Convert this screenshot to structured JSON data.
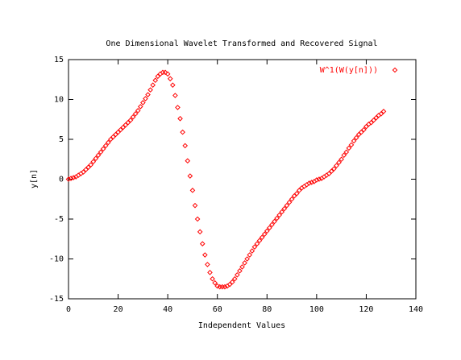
{
  "chart_data": {
    "type": "scatter",
    "title": "One Dimensional Wavelet Transformed and Recovered Signal",
    "xlabel": "Independent Values",
    "ylabel": "y[n]",
    "xlim": [
      0,
      140
    ],
    "xticks": [
      0,
      20,
      40,
      60,
      80,
      100,
      120,
      140
    ],
    "ylim": [
      -15,
      15
    ],
    "yticks": [
      -15,
      -10,
      -5,
      0,
      5,
      10,
      15
    ],
    "legend": "upper right",
    "series": [
      {
        "name": "W^1(W(y[n]))",
        "color": "#ff0000",
        "x": [
          0,
          1,
          2,
          3,
          4,
          5,
          6,
          7,
          8,
          9,
          10,
          11,
          12,
          13,
          14,
          15,
          16,
          17,
          18,
          19,
          20,
          21,
          22,
          23,
          24,
          25,
          26,
          27,
          28,
          29,
          30,
          31,
          32,
          33,
          34,
          35,
          36,
          37,
          38,
          39,
          40,
          41,
          42,
          43,
          44,
          45,
          46,
          47,
          48,
          49,
          50,
          51,
          52,
          53,
          54,
          55,
          56,
          57,
          58,
          59,
          60,
          61,
          62,
          63,
          64,
          65,
          66,
          67,
          68,
          69,
          70,
          71,
          72,
          73,
          74,
          75,
          76,
          77,
          78,
          79,
          80,
          81,
          82,
          83,
          84,
          85,
          86,
          87,
          88,
          89,
          90,
          91,
          92,
          93,
          94,
          95,
          96,
          97,
          98,
          99,
          100,
          101,
          102,
          103,
          104,
          105,
          106,
          107,
          108,
          109,
          110,
          111,
          112,
          113,
          114,
          115,
          116,
          117,
          118,
          119,
          120,
          121,
          122,
          123,
          124,
          125,
          126,
          127
        ],
        "values": [
          0,
          0.1,
          0.2,
          0.3,
          0.5,
          0.7,
          0.9,
          1.2,
          1.5,
          1.8,
          2.2,
          2.6,
          3.0,
          3.4,
          3.8,
          4.2,
          4.6,
          5.0,
          5.3,
          5.6,
          5.9,
          6.2,
          6.5,
          6.8,
          7.1,
          7.4,
          7.8,
          8.2,
          8.6,
          9.1,
          9.6,
          10.1,
          10.6,
          11.2,
          11.8,
          12.4,
          12.9,
          13.2,
          13.4,
          13.4,
          13.2,
          12.6,
          11.8,
          10.5,
          9.0,
          7.6,
          5.9,
          4.2,
          2.3,
          0.4,
          -1.4,
          -3.3,
          -5.0,
          -6.6,
          -8.1,
          -9.5,
          -10.7,
          -11.7,
          -12.5,
          -13.0,
          -13.4,
          -13.5,
          -13.5,
          -13.5,
          -13.4,
          -13.2,
          -12.9,
          -12.5,
          -12.0,
          -11.5,
          -11.0,
          -10.5,
          -10.0,
          -9.5,
          -9.0,
          -8.5,
          -8.1,
          -7.7,
          -7.3,
          -6.9,
          -6.5,
          -6.1,
          -5.7,
          -5.3,
          -4.9,
          -4.5,
          -4.1,
          -3.7,
          -3.3,
          -2.9,
          -2.5,
          -2.1,
          -1.8,
          -1.4,
          -1.1,
          -0.9,
          -0.7,
          -0.5,
          -0.4,
          -0.3,
          -0.1,
          0.0,
          0.1,
          0.3,
          0.5,
          0.7,
          1.0,
          1.3,
          1.7,
          2.1,
          2.5,
          3.0,
          3.4,
          3.9,
          4.3,
          4.8,
          5.2,
          5.6,
          5.9,
          6.2,
          6.6,
          6.9,
          7.1,
          7.4,
          7.7,
          8.0,
          8.2,
          8.5
        ]
      }
    ]
  }
}
